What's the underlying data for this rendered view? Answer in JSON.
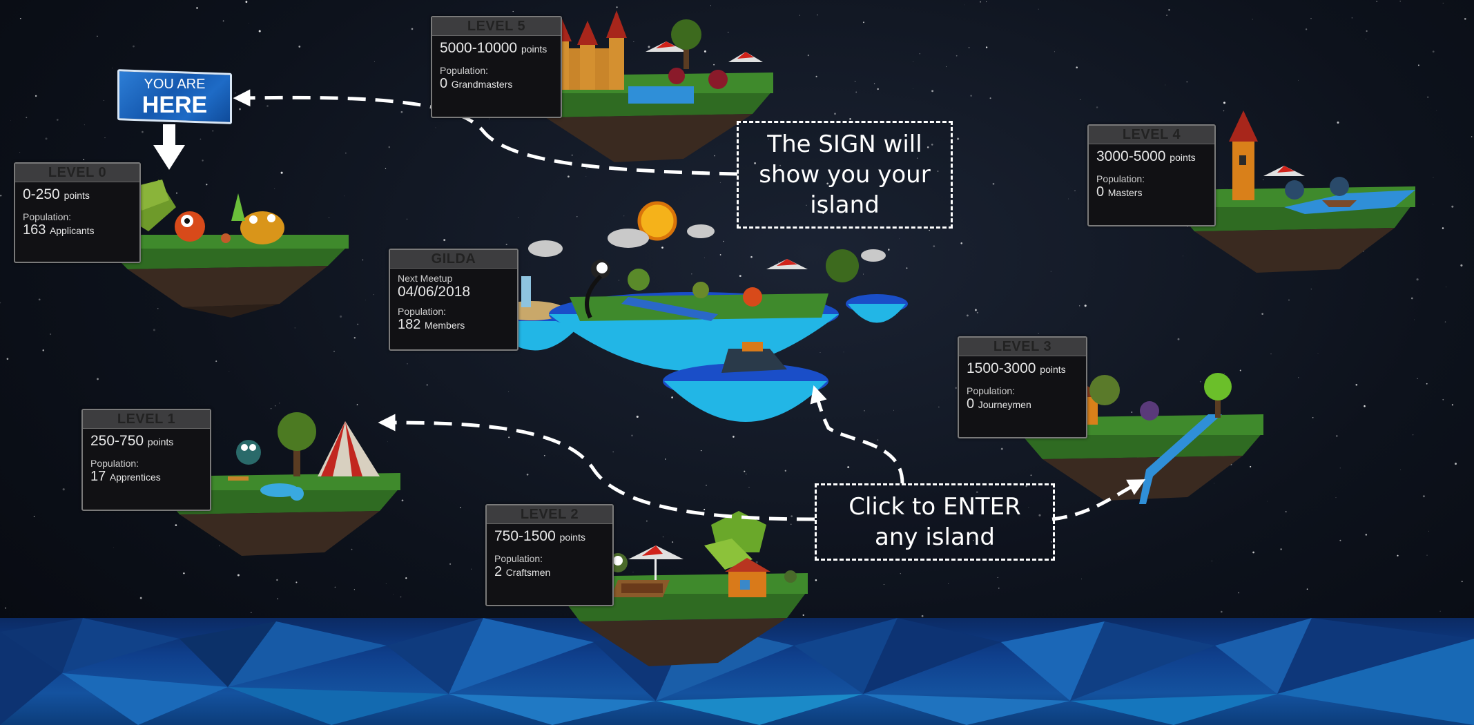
{
  "sign": {
    "line1": "YOU ARE",
    "line2": "HERE"
  },
  "islands": [
    {
      "id": "level0",
      "title": "LEVEL 0",
      "range": "0-250",
      "range_unit": "points",
      "population_label": "Population:",
      "population_count": "163",
      "population_unit": "Applicants"
    },
    {
      "id": "level1",
      "title": "LEVEL 1",
      "range": "250-750",
      "range_unit": "points",
      "population_label": "Population:",
      "population_count": "17",
      "population_unit": "Apprentices"
    },
    {
      "id": "level2",
      "title": "LEVEL 2",
      "range": "750-1500",
      "range_unit": "points",
      "population_label": "Population:",
      "population_count": "2",
      "population_unit": "Craftsmen"
    },
    {
      "id": "level3",
      "title": "LEVEL 3",
      "range": "1500-3000",
      "range_unit": "points",
      "population_label": "Population:",
      "population_count": "0",
      "population_unit": "Journeymen"
    },
    {
      "id": "level4",
      "title": "LEVEL 4",
      "range": "3000-5000",
      "range_unit": "points",
      "population_label": "Population:",
      "population_count": "0",
      "population_unit": "Masters"
    },
    {
      "id": "level5",
      "title": "LEVEL 5",
      "range": "5000-10000",
      "range_unit": "points",
      "population_label": "Population:",
      "population_count": "0",
      "population_unit": "Grandmasters"
    }
  ],
  "gilda": {
    "title": "GILDA",
    "meetup_label": "Next Meetup",
    "meetup_date": "04/06/2018",
    "population_label": "Population:",
    "population_count": "182",
    "population_unit": "Members"
  },
  "notes": {
    "sign_note": "The SIGN will show you your island",
    "enter_note": "Click to ENTER any island"
  },
  "colors": {
    "background": "#0d121c",
    "grass": "#3a7a2a",
    "rock": "#3b2b22",
    "water": "#1fb4e0",
    "sign": "#1559b0"
  }
}
